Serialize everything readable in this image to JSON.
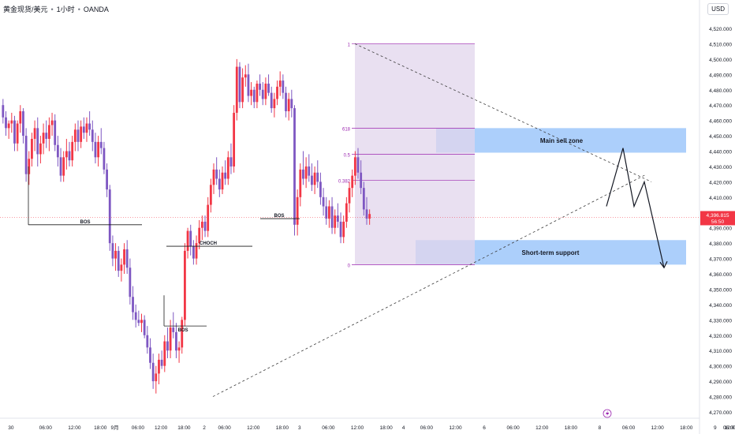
{
  "header": {
    "symbol": "黄金现货/美元",
    "interval": "1小时",
    "broker": "OANDA",
    "currency": "USD"
  },
  "price_badge": {
    "price": "4,396.815",
    "countdown": "56:50",
    "color": "#f23645"
  },
  "colors": {
    "up": "#f23645",
    "down": "#7e57c2",
    "zone": "#90bff9",
    "fib_fill": "#e1d5ec",
    "fib_line": "#9c27b0"
  },
  "chart_data": {
    "type": "candlestick",
    "y_axis": {
      "min": 4270,
      "max": 4520,
      "ticks": [
        4270,
        4280,
        4290,
        4300,
        4310,
        4320,
        4330,
        4340,
        4350,
        4360,
        4370,
        4380,
        4390,
        4400,
        4410,
        4420,
        4430,
        4440,
        4450,
        4460,
        4470,
        4480,
        4490,
        4500,
        4510,
        4520
      ],
      "tick_labels": [
        "4,270.000",
        "4,280.000",
        "4,290.000",
        "4,300.000",
        "4,310.000",
        "4,320.000",
        "4,330.000",
        "4,340.000",
        "4,350.000",
        "4,360.000",
        "4,370.000",
        "4,380.000",
        "4,390.000",
        "4,400.000",
        "4,410.000",
        "4,420.000",
        "4,430.000",
        "4,440.000",
        "4,450.000",
        "4,460.000",
        "4,470.000",
        "4,480.000",
        "4,490.000",
        "4,500.000",
        "4,510.000",
        "4,520.000"
      ]
    },
    "x_axis": {
      "tick_labels": [
        "30",
        "06:00",
        "12:00",
        "18:00",
        "9月",
        "06:00",
        "12:00",
        "18:00",
        "2",
        "06:00",
        "12:00",
        "18:00",
        "3",
        "06:00",
        "12:00",
        "18:00",
        "4",
        "06:00",
        "12:00",
        "6",
        "06:00",
        "12:00",
        "18:00",
        "8",
        "06:00",
        "12:00",
        "18:00",
        "9",
        "06:00",
        "12:0"
      ],
      "tick_index": [
        0,
        12,
        22,
        31,
        36,
        44,
        52,
        60,
        67,
        74,
        84,
        94,
        100,
        110,
        120,
        130,
        136,
        144,
        154,
        164,
        174,
        184,
        194,
        204,
        214,
        224,
        234,
        244,
        254,
        262
      ]
    },
    "candles": [
      [
        4470,
        4474,
        4458,
        4462
      ],
      [
        4462,
        4466,
        4450,
        4455
      ],
      [
        4455,
        4460,
        4448,
        4458
      ],
      [
        4458,
        4465,
        4452,
        4460
      ],
      [
        4460,
        4463,
        4440,
        4445
      ],
      [
        4445,
        4460,
        4440,
        4458
      ],
      [
        4458,
        4470,
        4452,
        4466
      ],
      [
        4466,
        4468,
        4445,
        4450
      ],
      [
        4450,
        4455,
        4420,
        4425
      ],
      [
        4425,
        4440,
        4418,
        4435
      ],
      [
        4435,
        4452,
        4430,
        4448
      ],
      [
        4448,
        4460,
        4440,
        4455
      ],
      [
        4455,
        4462,
        4430,
        4438
      ],
      [
        4438,
        4450,
        4432,
        4445
      ],
      [
        4445,
        4458,
        4438,
        4452
      ],
      [
        4452,
        4460,
        4442,
        4448
      ],
      [
        4448,
        4462,
        4440,
        4457
      ],
      [
        4457,
        4465,
        4450,
        4460
      ],
      [
        4460,
        4464,
        4440,
        4444
      ],
      [
        4444,
        4450,
        4430,
        4436
      ],
      [
        4436,
        4442,
        4420,
        4424
      ],
      [
        4424,
        4440,
        4420,
        4436
      ],
      [
        4436,
        4448,
        4428,
        4440
      ],
      [
        4440,
        4446,
        4430,
        4434
      ],
      [
        4434,
        4450,
        4430,
        4446
      ],
      [
        4446,
        4458,
        4440,
        4454
      ],
      [
        4454,
        4460,
        4440,
        4446
      ],
      [
        4446,
        4460,
        4442,
        4456
      ],
      [
        4456,
        4462,
        4448,
        4452
      ],
      [
        4452,
        4462,
        4446,
        4458
      ],
      [
        4458,
        4466,
        4450,
        4454
      ],
      [
        4454,
        4460,
        4440,
        4446
      ],
      [
        4446,
        4452,
        4432,
        4436
      ],
      [
        4436,
        4450,
        4430,
        4446
      ],
      [
        4446,
        4455,
        4438,
        4442
      ],
      [
        4442,
        4446,
        4425,
        4428
      ],
      [
        4428,
        4432,
        4410,
        4415
      ],
      [
        4415,
        4418,
        4375,
        4380
      ],
      [
        4380,
        4385,
        4365,
        4370
      ],
      [
        4370,
        4380,
        4362,
        4375
      ],
      [
        4375,
        4378,
        4358,
        4362
      ],
      [
        4362,
        4370,
        4355,
        4366
      ],
      [
        4366,
        4380,
        4360,
        4376
      ],
      [
        4376,
        4382,
        4360,
        4364
      ],
      [
        4364,
        4370,
        4340,
        4345
      ],
      [
        4345,
        4352,
        4330,
        4335
      ],
      [
        4335,
        4340,
        4325,
        4330
      ],
      [
        4330,
        4336,
        4326,
        4328
      ],
      [
        4328,
        4334,
        4322,
        4330
      ],
      [
        4330,
        4333,
        4318,
        4320
      ],
      [
        4320,
        4326,
        4308,
        4312
      ],
      [
        4312,
        4318,
        4298,
        4302
      ],
      [
        4302,
        4308,
        4285,
        4290
      ],
      [
        4290,
        4300,
        4282,
        4295
      ],
      [
        4295,
        4308,
        4288,
        4304
      ],
      [
        4304,
        4310,
        4298,
        4300
      ],
      [
        4300,
        4320,
        4296,
        4316
      ],
      [
        4316,
        4325,
        4305,
        4310
      ],
      [
        4310,
        4330,
        4305,
        4325
      ],
      [
        4325,
        4335,
        4318,
        4322
      ],
      [
        4322,
        4328,
        4305,
        4310
      ],
      [
        4310,
        4316,
        4302,
        4312
      ],
      [
        4312,
        4332,
        4308,
        4330
      ],
      [
        4330,
        4380,
        4326,
        4375
      ],
      [
        4375,
        4390,
        4370,
        4388
      ],
      [
        4388,
        4392,
        4372,
        4378
      ],
      [
        4378,
        4382,
        4366,
        4370
      ],
      [
        4370,
        4385,
        4366,
        4380
      ],
      [
        4380,
        4395,
        4376,
        4390
      ],
      [
        4390,
        4398,
        4382,
        4394
      ],
      [
        4394,
        4398,
        4384,
        4388
      ],
      [
        4388,
        4410,
        4384,
        4405
      ],
      [
        4405,
        4422,
        4400,
        4418
      ],
      [
        4418,
        4432,
        4412,
        4428
      ],
      [
        4428,
        4436,
        4418,
        4422
      ],
      [
        4422,
        4428,
        4410,
        4415
      ],
      [
        4415,
        4430,
        4412,
        4426
      ],
      [
        4426,
        4434,
        4418,
        4422
      ],
      [
        4422,
        4440,
        4418,
        4436
      ],
      [
        4436,
        4445,
        4425,
        4430
      ],
      [
        4430,
        4470,
        4426,
        4465
      ],
      [
        4465,
        4500,
        4460,
        4495
      ],
      [
        4495,
        4498,
        4468,
        4472
      ],
      [
        4472,
        4494,
        4468,
        4488
      ],
      [
        4488,
        4496,
        4482,
        4490
      ],
      [
        4490,
        4497,
        4472,
        4476
      ],
      [
        4476,
        4485,
        4470,
        4480
      ],
      [
        4480,
        4482,
        4468,
        4472
      ],
      [
        4472,
        4486,
        4468,
        4484
      ],
      [
        4484,
        4490,
        4476,
        4480
      ],
      [
        4480,
        4485,
        4470,
        4474
      ],
      [
        4474,
        4488,
        4470,
        4484
      ],
      [
        4484,
        4490,
        4476,
        4478
      ],
      [
        4478,
        4482,
        4465,
        4468
      ],
      [
        4468,
        4478,
        4462,
        4474
      ],
      [
        4474,
        4486,
        4470,
        4482
      ],
      [
        4482,
        4492,
        4476,
        4486
      ],
      [
        4486,
        4490,
        4474,
        4478
      ],
      [
        4478,
        4482,
        4462,
        4466
      ],
      [
        4466,
        4478,
        4460,
        4474
      ],
      [
        4474,
        4480,
        4462,
        4468
      ],
      [
        4468,
        4470,
        4385,
        4392
      ],
      [
        4392,
        4415,
        4385,
        4410
      ],
      [
        4410,
        4432,
        4404,
        4428
      ],
      [
        4428,
        4440,
        4418,
        4422
      ],
      [
        4422,
        4436,
        4416,
        4430
      ],
      [
        4430,
        4438,
        4420,
        4424
      ],
      [
        4424,
        4432,
        4414,
        4418
      ],
      [
        4418,
        4430,
        4412,
        4426
      ],
      [
        4426,
        4434,
        4416,
        4420
      ],
      [
        4420,
        4426,
        4405,
        4410
      ],
      [
        4410,
        4416,
        4398,
        4404
      ],
      [
        4404,
        4410,
        4392,
        4396
      ],
      [
        4396,
        4408,
        4390,
        4404
      ],
      [
        4404,
        4410,
        4386,
        4390
      ],
      [
        4390,
        4402,
        4386,
        4398
      ],
      [
        4398,
        4406,
        4390,
        4394
      ],
      [
        4394,
        4400,
        4380,
        4384
      ],
      [
        4384,
        4398,
        4380,
        4394
      ],
      [
        4394,
        4410,
        4390,
        4406
      ],
      [
        4406,
        4420,
        4400,
        4416
      ],
      [
        4416,
        4428,
        4410,
        4424
      ],
      [
        4424,
        4440,
        4418,
        4436
      ],
      [
        4436,
        4442,
        4422,
        4426
      ],
      [
        4426,
        4434,
        4412,
        4416
      ],
      [
        4416,
        4420,
        4398,
        4402
      ],
      [
        4402,
        4410,
        4392,
        4396
      ],
      [
        4396,
        4402,
        4392,
        4399
      ]
    ]
  },
  "annotations": {
    "bos_1": "BOS",
    "bos_2": "BOS",
    "bos_3": "BOS",
    "choch": "CHOCH",
    "main_sell_zone": "Main sell zone",
    "short_term_support": "Short-term support",
    "fib_1": "1",
    "fib_618": "618",
    "fib_05": "0.5",
    "fib_0382": "0.382",
    "fib_0": "0"
  }
}
